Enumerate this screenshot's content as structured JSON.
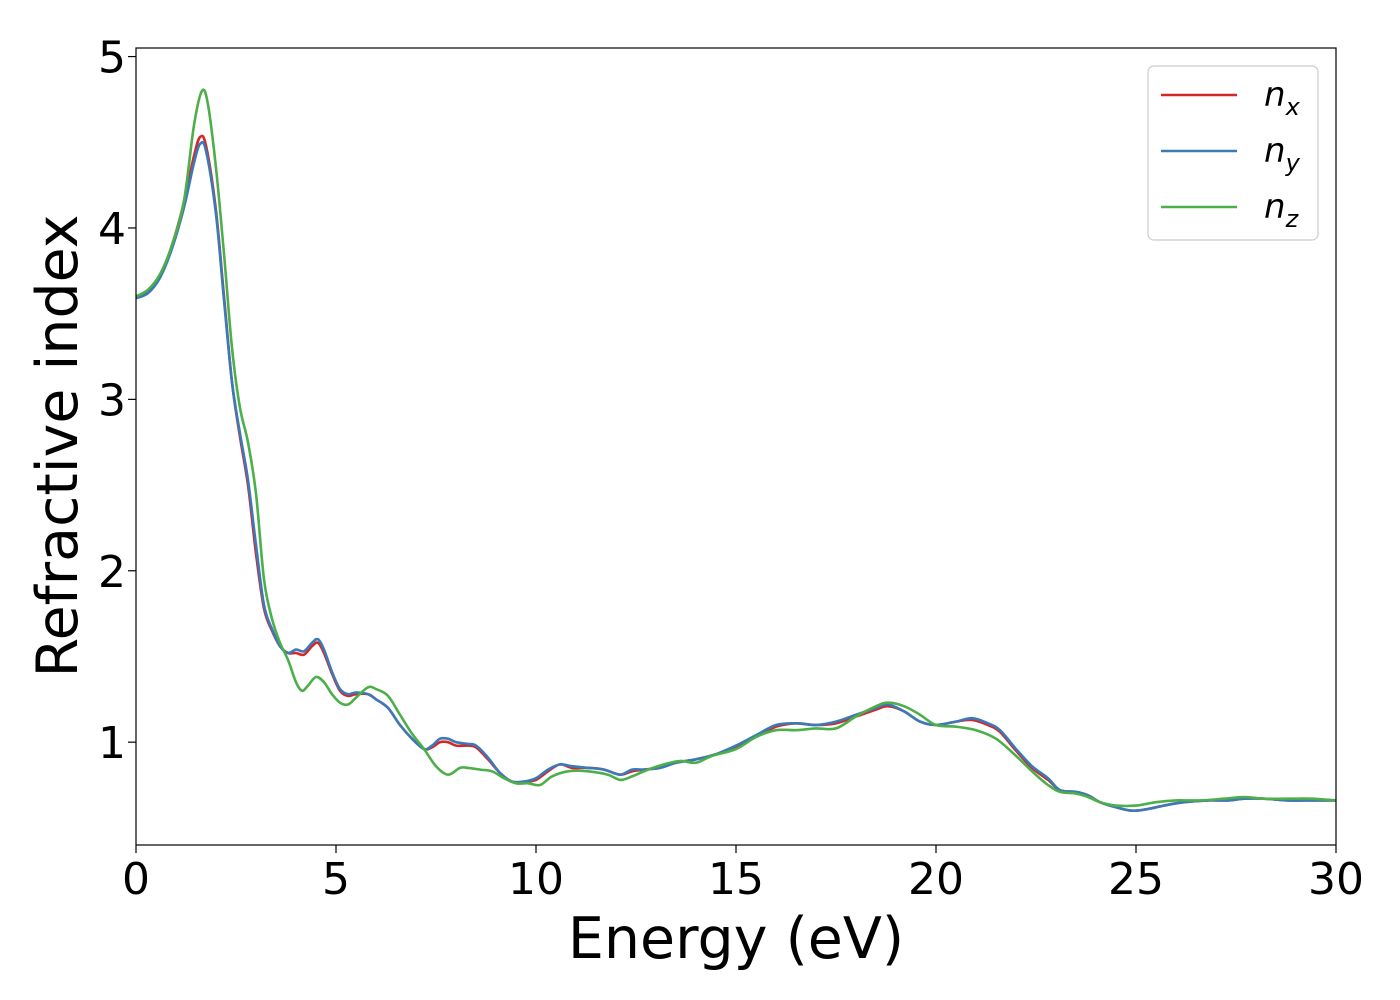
{
  "chart_data": {
    "type": "line",
    "title": "",
    "xlabel": "Energy (eV)",
    "ylabel": "Refractive index",
    "xlim": [
      0,
      30
    ],
    "ylim": [
      0.4,
      5.05
    ],
    "xticks": [
      0,
      5,
      10,
      15,
      20,
      25,
      30
    ],
    "xtick_labels": [
      "0",
      "5",
      "10",
      "15",
      "20",
      "25",
      "30"
    ],
    "yticks": [
      1,
      2,
      3,
      4,
      5
    ],
    "ytick_labels": [
      "1",
      "2",
      "3",
      "4",
      "5"
    ],
    "grid": false,
    "legend_position": "top-right",
    "series": [
      {
        "name": "n_x",
        "label_base": "n",
        "label_sub": "x",
        "color": "#d62728",
        "points": [
          [
            0,
            3.6
          ],
          [
            0.3,
            3.63
          ],
          [
            0.6,
            3.72
          ],
          [
            0.9,
            3.9
          ],
          [
            1.2,
            4.15
          ],
          [
            1.45,
            4.42
          ],
          [
            1.6,
            4.53
          ],
          [
            1.75,
            4.48
          ],
          [
            2.0,
            4.1
          ],
          [
            2.2,
            3.6
          ],
          [
            2.4,
            3.1
          ],
          [
            2.6,
            2.78
          ],
          [
            2.8,
            2.5
          ],
          [
            3.0,
            2.1
          ],
          [
            3.2,
            1.78
          ],
          [
            3.4,
            1.65
          ],
          [
            3.6,
            1.56
          ],
          [
            3.8,
            1.52
          ],
          [
            4.0,
            1.52
          ],
          [
            4.2,
            1.51
          ],
          [
            4.4,
            1.56
          ],
          [
            4.55,
            1.58
          ],
          [
            4.7,
            1.52
          ],
          [
            4.9,
            1.4
          ],
          [
            5.1,
            1.3
          ],
          [
            5.3,
            1.27
          ],
          [
            5.5,
            1.28
          ],
          [
            5.8,
            1.28
          ],
          [
            6.0,
            1.25
          ],
          [
            6.3,
            1.2
          ],
          [
            6.6,
            1.1
          ],
          [
            6.9,
            1.02
          ],
          [
            7.2,
            0.96
          ],
          [
            7.4,
            0.97
          ],
          [
            7.6,
            1.0
          ],
          [
            7.8,
            1.0
          ],
          [
            8.0,
            0.98
          ],
          [
            8.3,
            0.98
          ],
          [
            8.5,
            0.97
          ],
          [
            8.8,
            0.9
          ],
          [
            9.1,
            0.82
          ],
          [
            9.4,
            0.77
          ],
          [
            9.7,
            0.77
          ],
          [
            10.0,
            0.78
          ],
          [
            10.3,
            0.83
          ],
          [
            10.6,
            0.87
          ],
          [
            10.9,
            0.85
          ],
          [
            11.3,
            0.85
          ],
          [
            11.7,
            0.84
          ],
          [
            12.1,
            0.81
          ],
          [
            12.4,
            0.83
          ],
          [
            12.7,
            0.84
          ],
          [
            13.1,
            0.85
          ],
          [
            13.5,
            0.88
          ],
          [
            14.0,
            0.9
          ],
          [
            14.5,
            0.93
          ],
          [
            15.0,
            0.97
          ],
          [
            15.5,
            1.03
          ],
          [
            16.0,
            1.09
          ],
          [
            16.5,
            1.11
          ],
          [
            17.0,
            1.1
          ],
          [
            17.5,
            1.11
          ],
          [
            18.0,
            1.15
          ],
          [
            18.5,
            1.19
          ],
          [
            18.8,
            1.21
          ],
          [
            19.2,
            1.18
          ],
          [
            19.6,
            1.12
          ],
          [
            20.0,
            1.1
          ],
          [
            20.5,
            1.12
          ],
          [
            20.9,
            1.13
          ],
          [
            21.3,
            1.1
          ],
          [
            21.6,
            1.06
          ],
          [
            22.0,
            0.95
          ],
          [
            22.4,
            0.85
          ],
          [
            22.8,
            0.78
          ],
          [
            23.1,
            0.72
          ],
          [
            23.5,
            0.71
          ],
          [
            23.8,
            0.69
          ],
          [
            24.1,
            0.65
          ],
          [
            24.5,
            0.62
          ],
          [
            24.9,
            0.6
          ],
          [
            25.3,
            0.61
          ],
          [
            25.7,
            0.63
          ],
          [
            26.2,
            0.65
          ],
          [
            26.8,
            0.66
          ],
          [
            27.3,
            0.66
          ],
          [
            27.7,
            0.67
          ],
          [
            28.2,
            0.67
          ],
          [
            28.8,
            0.66
          ],
          [
            29.4,
            0.66
          ],
          [
            30.0,
            0.66
          ]
        ]
      },
      {
        "name": "n_y",
        "label_base": "n",
        "label_sub": "y",
        "color": "#3a7ab8",
        "points": [
          [
            0,
            3.59
          ],
          [
            0.3,
            3.62
          ],
          [
            0.6,
            3.71
          ],
          [
            0.9,
            3.88
          ],
          [
            1.2,
            4.12
          ],
          [
            1.45,
            4.38
          ],
          [
            1.6,
            4.49
          ],
          [
            1.75,
            4.45
          ],
          [
            2.0,
            4.08
          ],
          [
            2.2,
            3.58
          ],
          [
            2.4,
            3.1
          ],
          [
            2.6,
            2.8
          ],
          [
            2.8,
            2.53
          ],
          [
            3.0,
            2.15
          ],
          [
            3.2,
            1.8
          ],
          [
            3.4,
            1.66
          ],
          [
            3.6,
            1.56
          ],
          [
            3.8,
            1.52
          ],
          [
            4.0,
            1.54
          ],
          [
            4.2,
            1.53
          ],
          [
            4.4,
            1.58
          ],
          [
            4.55,
            1.6
          ],
          [
            4.7,
            1.54
          ],
          [
            4.9,
            1.41
          ],
          [
            5.1,
            1.31
          ],
          [
            5.3,
            1.28
          ],
          [
            5.5,
            1.29
          ],
          [
            5.8,
            1.28
          ],
          [
            6.0,
            1.25
          ],
          [
            6.3,
            1.2
          ],
          [
            6.6,
            1.1
          ],
          [
            6.9,
            1.02
          ],
          [
            7.2,
            0.96
          ],
          [
            7.4,
            0.98
          ],
          [
            7.6,
            1.02
          ],
          [
            7.8,
            1.02
          ],
          [
            8.0,
            1.0
          ],
          [
            8.3,
            0.99
          ],
          [
            8.5,
            0.98
          ],
          [
            8.8,
            0.91
          ],
          [
            9.1,
            0.82
          ],
          [
            9.4,
            0.77
          ],
          [
            9.7,
            0.77
          ],
          [
            10.0,
            0.79
          ],
          [
            10.3,
            0.84
          ],
          [
            10.6,
            0.87
          ],
          [
            10.9,
            0.86
          ],
          [
            11.3,
            0.85
          ],
          [
            11.7,
            0.84
          ],
          [
            12.1,
            0.81
          ],
          [
            12.4,
            0.84
          ],
          [
            12.7,
            0.84
          ],
          [
            13.1,
            0.85
          ],
          [
            13.5,
            0.88
          ],
          [
            14.0,
            0.9
          ],
          [
            14.5,
            0.93
          ],
          [
            15.0,
            0.98
          ],
          [
            15.5,
            1.04
          ],
          [
            16.0,
            1.1
          ],
          [
            16.5,
            1.11
          ],
          [
            17.0,
            1.1
          ],
          [
            17.5,
            1.12
          ],
          [
            18.0,
            1.16
          ],
          [
            18.5,
            1.2
          ],
          [
            18.8,
            1.22
          ],
          [
            19.2,
            1.18
          ],
          [
            19.6,
            1.12
          ],
          [
            20.0,
            1.1
          ],
          [
            20.5,
            1.12
          ],
          [
            20.9,
            1.14
          ],
          [
            21.3,
            1.11
          ],
          [
            21.6,
            1.07
          ],
          [
            22.0,
            0.96
          ],
          [
            22.4,
            0.86
          ],
          [
            22.8,
            0.79
          ],
          [
            23.1,
            0.72
          ],
          [
            23.5,
            0.71
          ],
          [
            23.8,
            0.69
          ],
          [
            24.1,
            0.65
          ],
          [
            24.5,
            0.62
          ],
          [
            24.9,
            0.6
          ],
          [
            25.3,
            0.61
          ],
          [
            25.7,
            0.63
          ],
          [
            26.2,
            0.65
          ],
          [
            26.8,
            0.66
          ],
          [
            27.3,
            0.66
          ],
          [
            27.7,
            0.67
          ],
          [
            28.2,
            0.67
          ],
          [
            28.8,
            0.66
          ],
          [
            29.4,
            0.66
          ],
          [
            30.0,
            0.66
          ]
        ]
      },
      {
        "name": "n_z",
        "label_base": "n",
        "label_sub": "z",
        "color": "#4daf4a",
        "points": [
          [
            0,
            3.6
          ],
          [
            0.3,
            3.64
          ],
          [
            0.6,
            3.73
          ],
          [
            0.9,
            3.9
          ],
          [
            1.2,
            4.16
          ],
          [
            1.45,
            4.6
          ],
          [
            1.65,
            4.8
          ],
          [
            1.8,
            4.72
          ],
          [
            2.0,
            4.35
          ],
          [
            2.2,
            3.85
          ],
          [
            2.4,
            3.3
          ],
          [
            2.6,
            2.95
          ],
          [
            2.8,
            2.75
          ],
          [
            3.0,
            2.45
          ],
          [
            3.2,
            1.95
          ],
          [
            3.4,
            1.72
          ],
          [
            3.6,
            1.58
          ],
          [
            3.8,
            1.48
          ],
          [
            4.0,
            1.35
          ],
          [
            4.15,
            1.3
          ],
          [
            4.3,
            1.33
          ],
          [
            4.5,
            1.38
          ],
          [
            4.7,
            1.35
          ],
          [
            4.9,
            1.28
          ],
          [
            5.1,
            1.23
          ],
          [
            5.3,
            1.22
          ],
          [
            5.5,
            1.26
          ],
          [
            5.8,
            1.32
          ],
          [
            6.0,
            1.31
          ],
          [
            6.3,
            1.27
          ],
          [
            6.6,
            1.16
          ],
          [
            6.9,
            1.05
          ],
          [
            7.2,
            0.96
          ],
          [
            7.5,
            0.86
          ],
          [
            7.8,
            0.81
          ],
          [
            8.1,
            0.85
          ],
          [
            8.3,
            0.85
          ],
          [
            8.6,
            0.84
          ],
          [
            8.9,
            0.83
          ],
          [
            9.2,
            0.79
          ],
          [
            9.5,
            0.76
          ],
          [
            9.8,
            0.76
          ],
          [
            10.1,
            0.75
          ],
          [
            10.4,
            0.8
          ],
          [
            10.8,
            0.83
          ],
          [
            11.3,
            0.83
          ],
          [
            11.8,
            0.81
          ],
          [
            12.1,
            0.78
          ],
          [
            12.4,
            0.8
          ],
          [
            12.8,
            0.84
          ],
          [
            13.2,
            0.87
          ],
          [
            13.6,
            0.89
          ],
          [
            14.0,
            0.88
          ],
          [
            14.4,
            0.92
          ],
          [
            15.0,
            0.96
          ],
          [
            15.5,
            1.03
          ],
          [
            16.0,
            1.07
          ],
          [
            16.5,
            1.07
          ],
          [
            17.0,
            1.08
          ],
          [
            17.5,
            1.08
          ],
          [
            18.0,
            1.15
          ],
          [
            18.5,
            1.21
          ],
          [
            18.8,
            1.23
          ],
          [
            19.2,
            1.21
          ],
          [
            19.6,
            1.16
          ],
          [
            20.0,
            1.1
          ],
          [
            20.5,
            1.09
          ],
          [
            21.0,
            1.07
          ],
          [
            21.5,
            1.02
          ],
          [
            22.0,
            0.92
          ],
          [
            22.4,
            0.83
          ],
          [
            22.8,
            0.75
          ],
          [
            23.1,
            0.71
          ],
          [
            23.5,
            0.7
          ],
          [
            23.8,
            0.68
          ],
          [
            24.1,
            0.65
          ],
          [
            24.5,
            0.63
          ],
          [
            25.0,
            0.63
          ],
          [
            25.5,
            0.65
          ],
          [
            26.0,
            0.66
          ],
          [
            26.6,
            0.66
          ],
          [
            27.2,
            0.67
          ],
          [
            27.7,
            0.68
          ],
          [
            28.2,
            0.67
          ],
          [
            28.8,
            0.67
          ],
          [
            29.4,
            0.67
          ],
          [
            30.0,
            0.66
          ]
        ]
      }
    ]
  }
}
